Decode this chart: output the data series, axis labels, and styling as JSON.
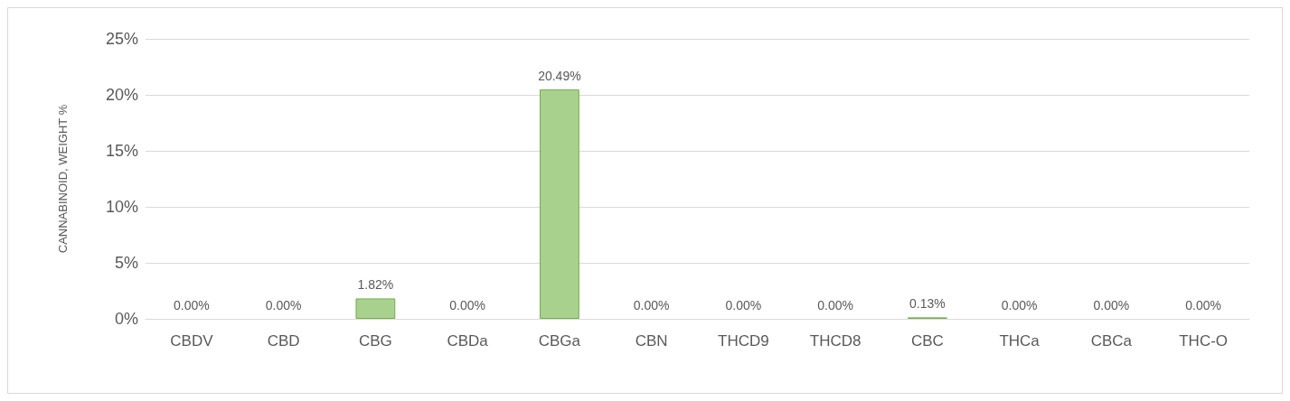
{
  "chart_data": {
    "type": "bar",
    "ylabel": "CANNABINOID, WEIGHT %",
    "categories": [
      "CBDV",
      "CBD",
      "CBG",
      "CBDa",
      "CBGa",
      "CBN",
      "THCD9",
      "THCD8",
      "CBC",
      "THCa",
      "CBCa",
      "THC-O"
    ],
    "values": [
      0,
      0,
      1.82,
      0,
      20.49,
      0,
      0,
      0,
      0.13,
      0,
      0,
      0
    ],
    "value_labels": [
      "0.00%",
      "0.00%",
      "1.82%",
      "0.00%",
      "20.49%",
      "0.00%",
      "0.00%",
      "0.00%",
      "0.13%",
      "0.00%",
      "0.00%",
      "0.00%"
    ],
    "color": "#a9d18e",
    "ylim": [
      0,
      25
    ],
    "yticks": [
      {
        "value": 0,
        "label": "0%"
      },
      {
        "value": 5,
        "label": "5%"
      },
      {
        "value": 10,
        "label": "10%"
      },
      {
        "value": 15,
        "label": "15%"
      },
      {
        "value": 20,
        "label": "20%"
      },
      {
        "value": 25,
        "label": "25%"
      }
    ],
    "grid": "y"
  }
}
